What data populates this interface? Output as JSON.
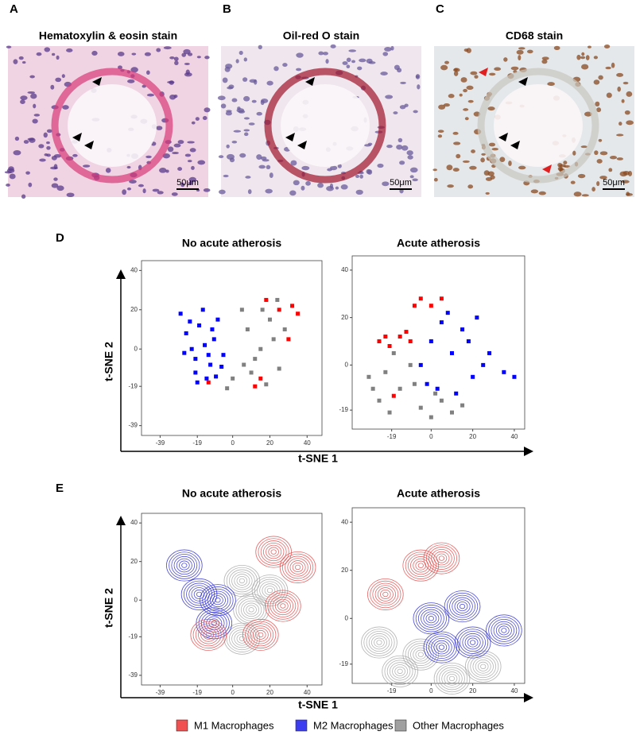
{
  "images": [
    {
      "letter": "A",
      "title": "Hematoxylin & eosin stain",
      "scale_bar": "50μm"
    },
    {
      "letter": "B",
      "title": "Oil-red O stain",
      "scale_bar": "50μm"
    },
    {
      "letter": "C",
      "title": "CD68 stain",
      "scale_bar": "50μm"
    }
  ],
  "legend": [
    {
      "name": "M1 Macrophages",
      "color": "#f05050"
    },
    {
      "name": "M2 Macrophages",
      "color": "#3c3cf0"
    },
    {
      "name": "Other Macrophages",
      "color": "#a0a0a0"
    }
  ],
  "chart_data": [
    {
      "type": "scatter",
      "letter": "D",
      "title": "No acute atherosis",
      "xlabel": "t-SNE 1",
      "ylabel": "t-SNE 2",
      "xlim": [
        -49,
        48
      ],
      "ylim": [
        -44,
        45
      ],
      "xticks": [
        -39,
        -19,
        0,
        20,
        40
      ],
      "yticks": [
        40,
        20,
        0,
        -19,
        -39
      ],
      "series": [
        {
          "color": "#ff0000",
          "x": [
            18,
            25,
            32,
            35,
            12,
            -13,
            30,
            15
          ],
          "y": [
            25,
            20,
            22,
            18,
            -19,
            -17,
            5,
            -15
          ]
        },
        {
          "color": "#0000ff",
          "x": [
            -28,
            -25,
            -22,
            -20,
            -18,
            -15,
            -12,
            -10,
            -8,
            -5,
            -26,
            -20,
            -14,
            -9,
            -16,
            -23,
            -11,
            -6,
            -19,
            -13
          ],
          "y": [
            18,
            8,
            0,
            -5,
            12,
            2,
            -8,
            5,
            15,
            -3,
            -2,
            -12,
            -15,
            -14,
            20,
            14,
            10,
            -9,
            -17,
            -3
          ]
        },
        {
          "color": "#808080",
          "x": [
            5,
            8,
            12,
            15,
            20,
            22,
            25,
            28,
            10,
            18,
            0,
            -3,
            24,
            16,
            6
          ],
          "y": [
            20,
            10,
            -5,
            0,
            15,
            5,
            -10,
            10,
            -12,
            -18,
            -15,
            -20,
            25,
            20,
            -8
          ]
        }
      ]
    },
    {
      "type": "scatter",
      "title": "Acute atherosis",
      "xlim": [
        -38,
        45
      ],
      "ylim": [
        -27,
        46
      ],
      "xticks": [
        -19,
        0,
        20,
        40
      ],
      "yticks": [
        40,
        20,
        0,
        -19
      ],
      "series": [
        {
          "color": "#ff0000",
          "x": [
            -25,
            -20,
            -15,
            -10,
            -8,
            -5,
            0,
            5,
            -22,
            -12,
            -18
          ],
          "y": [
            10,
            8,
            12,
            10,
            25,
            28,
            25,
            28,
            12,
            14,
            -13
          ]
        },
        {
          "color": "#0000ff",
          "x": [
            -5,
            0,
            5,
            10,
            15,
            20,
            25,
            35,
            40,
            3,
            8,
            18,
            -2,
            12,
            28,
            22
          ],
          "y": [
            0,
            10,
            18,
            5,
            15,
            -5,
            0,
            -3,
            -5,
            -10,
            22,
            10,
            -8,
            -12,
            5,
            20
          ]
        },
        {
          "color": "#808080",
          "x": [
            -30,
            -25,
            -20,
            -15,
            -10,
            -5,
            0,
            5,
            10,
            -28,
            -18,
            -8,
            2,
            15,
            -22
          ],
          "y": [
            -5,
            -15,
            -20,
            -10,
            0,
            -18,
            -22,
            -15,
            -20,
            -10,
            5,
            -8,
            -12,
            -17,
            -3
          ]
        }
      ]
    },
    {
      "type": "contour",
      "letter": "E",
      "title": "No acute atherosis",
      "xlabel": "t-SNE 1",
      "ylabel": "t-SNE 2",
      "xlim": [
        -49,
        48
      ],
      "ylim": [
        -44,
        45
      ],
      "xticks": [
        -39,
        -19,
        0,
        20,
        40
      ],
      "yticks": [
        40,
        20,
        0,
        -19,
        -39
      ],
      "series": [
        {
          "color": "#e05050",
          "x": [
            22,
            35,
            27,
            15,
            -13
          ],
          "y": [
            25,
            17,
            -3,
            -18,
            -18
          ]
        },
        {
          "color": "#3030d0",
          "x": [
            -26,
            -18,
            -8,
            -10
          ],
          "y": [
            18,
            3,
            0,
            -12
          ]
        },
        {
          "color": "#a8a8a8",
          "x": [
            5,
            10,
            5,
            20
          ],
          "y": [
            10,
            -5,
            -20,
            5
          ]
        }
      ]
    },
    {
      "type": "contour",
      "title": "Acute atherosis",
      "xlim": [
        -38,
        45
      ],
      "ylim": [
        -27,
        46
      ],
      "xticks": [
        -19,
        0,
        20,
        40
      ],
      "yticks": [
        40,
        20,
        0,
        -19
      ],
      "series": [
        {
          "color": "#e05050",
          "x": [
            -22,
            -5,
            5
          ],
          "y": [
            10,
            22,
            25
          ]
        },
        {
          "color": "#3030d0",
          "x": [
            0,
            15,
            35,
            5,
            20
          ],
          "y": [
            0,
            5,
            -5,
            -12,
            -10
          ]
        },
        {
          "color": "#a8a8a8",
          "x": [
            -25,
            -15,
            -5,
            10,
            25
          ],
          "y": [
            -10,
            -22,
            -15,
            -25,
            -20
          ]
        }
      ]
    }
  ]
}
